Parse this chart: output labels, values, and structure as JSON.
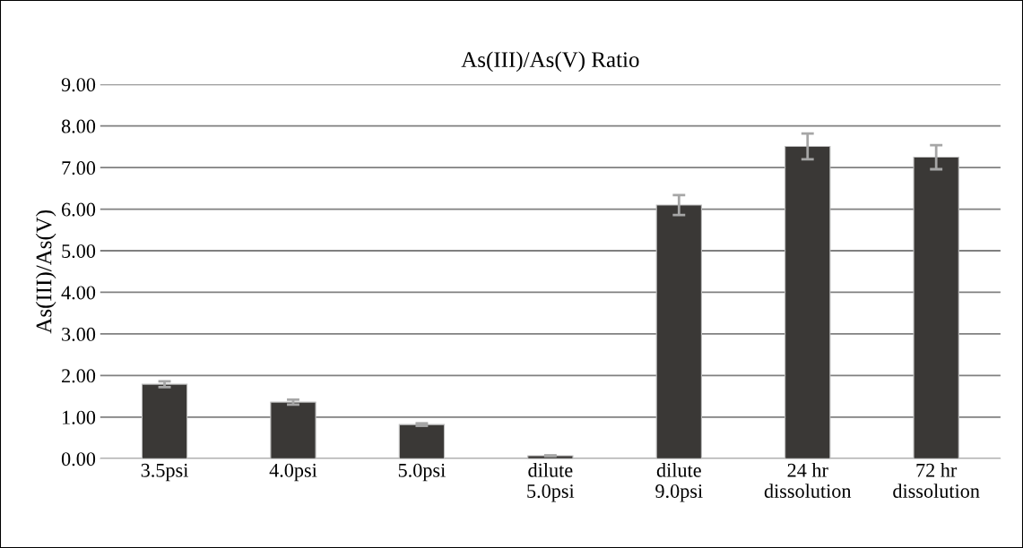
{
  "chart_data": {
    "type": "bar",
    "title": "As(III)/As(V) Ratio",
    "ylabel": "As(III)/As(V)",
    "categories": [
      "3.5psi",
      "4.0psi",
      "5.0psi",
      "dilute\n5.0psi",
      "dilute\n9.0psi",
      "24 hr\ndissolution",
      "72 hr\ndissolution"
    ],
    "values": [
      1.79,
      1.36,
      0.82,
      0.07,
      6.1,
      7.51,
      7.25
    ],
    "errors": [
      0.07,
      0.06,
      0.03,
      0.01,
      0.24,
      0.31,
      0.29
    ],
    "color": "#3a3836",
    "ylim": [
      0,
      9
    ],
    "yticks": [
      {
        "value": 0,
        "label": "0.00"
      },
      {
        "value": 1,
        "label": "1.00"
      },
      {
        "value": 2,
        "label": "2.00"
      },
      {
        "value": 3,
        "label": "3.00"
      },
      {
        "value": 4,
        "label": "4.00"
      },
      {
        "value": 5,
        "label": "5.00"
      },
      {
        "value": 6,
        "label": "6.00"
      },
      {
        "value": 7,
        "label": "7.00"
      },
      {
        "value": 8,
        "label": "8.00"
      },
      {
        "value": 9,
        "label": "9.00"
      }
    ],
    "grid": "y"
  }
}
